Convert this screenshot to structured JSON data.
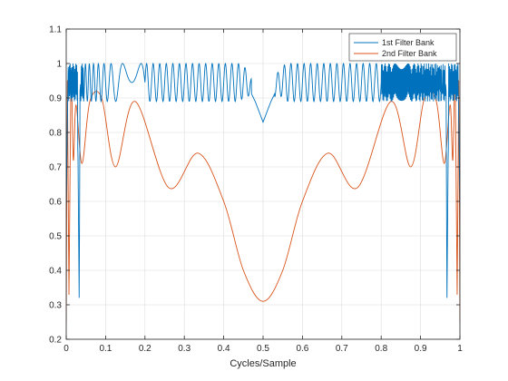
{
  "chart_data": {
    "type": "line",
    "xlabel": "Cycles/Sample",
    "ylabel": "",
    "title": "",
    "xlim": [
      0,
      1
    ],
    "ylim": [
      0.2,
      1.1
    ],
    "xticks": [
      "0",
      "0.1",
      "0.2",
      "0.3",
      "0.4",
      "0.5",
      "0.6",
      "0.7",
      "0.8",
      "0.9",
      "1"
    ],
    "yticks": [
      "0.2",
      "0.3",
      "0.4",
      "0.5",
      "0.6",
      "0.7",
      "0.8",
      "0.9",
      "1",
      "1.1"
    ],
    "grid": true,
    "legend_position": "top-right",
    "series": [
      {
        "name": "1st Filter Bank",
        "color": "#0072BD",
        "description": "ripple between about 0.89 and 1.0 across the band, dip to 0.83 at 0.5, deep notches near 0.03 and 0.97",
        "x": [
          0,
          0.005,
          0.01,
          0.015,
          0.02,
          0.025,
          0.03,
          0.033,
          0.035,
          0.04,
          0.06,
          0.1,
          0.2,
          0.3,
          0.4,
          0.45,
          0.48,
          0.5,
          0.52,
          0.55,
          0.6,
          0.7,
          0.8,
          0.9,
          0.94,
          0.96,
          0.965,
          0.967,
          0.97,
          0.975,
          0.98,
          0.985,
          0.99,
          0.995,
          1
        ],
        "y": [
          0.59,
          0.99,
          0.9,
          1.0,
          0.89,
          0.98,
          0.72,
          0.3,
          0.92,
          0.99,
          0.9,
          1.0,
          0.89,
          1.0,
          0.9,
          0.96,
          0.89,
          0.83,
          0.89,
          0.96,
          0.9,
          1.0,
          0.89,
          1.0,
          0.9,
          0.99,
          0.92,
          0.3,
          0.72,
          0.98,
          0.89,
          1.0,
          0.9,
          0.99,
          0.59
        ]
      },
      {
        "name": "2nd Filter Bank",
        "color": "#D95319",
        "x": [
          0,
          0.003,
          0.007,
          0.012,
          0.018,
          0.025,
          0.04,
          0.06,
          0.09,
          0.125,
          0.175,
          0.26,
          0.335,
          0.4,
          0.45,
          0.5,
          0.55,
          0.6,
          0.665,
          0.74,
          0.825,
          0.875,
          0.91,
          0.94,
          0.96,
          0.975,
          0.982,
          0.988,
          0.993,
          0.997,
          1
        ],
        "y": [
          0.25,
          0.95,
          0.33,
          0.97,
          0.72,
          0.88,
          0.71,
          0.89,
          0.9,
          0.7,
          0.89,
          0.64,
          0.74,
          0.6,
          0.4,
          0.31,
          0.4,
          0.6,
          0.74,
          0.64,
          0.89,
          0.7,
          0.9,
          0.89,
          0.71,
          0.88,
          0.72,
          0.97,
          0.33,
          0.95,
          0.25
        ]
      }
    ]
  }
}
